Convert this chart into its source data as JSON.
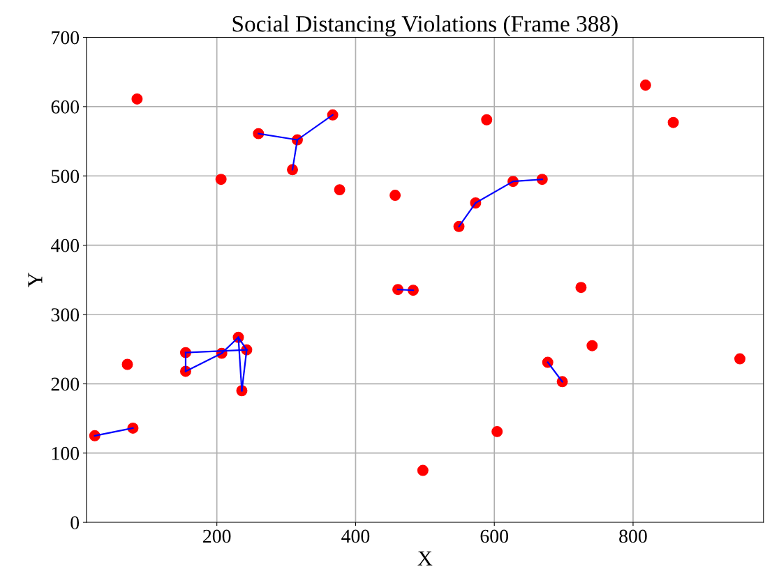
{
  "chart_data": {
    "type": "scatter",
    "title": "Social Distancing Violations (Frame 388)",
    "xlabel": "X",
    "ylabel": "Y",
    "xlim": [
      12,
      988
    ],
    "ylim": [
      0,
      700
    ],
    "xticks": [
      200,
      400,
      600,
      800
    ],
    "yticks": [
      0,
      100,
      200,
      300,
      400,
      500,
      600,
      700
    ],
    "grid": true,
    "series": [
      {
        "marker": "circle",
        "color": "#ff0000",
        "x": [
          24,
          79,
          71,
          85,
          155,
          155,
          207,
          231,
          243,
          236,
          206,
          260,
          316,
          309,
          367,
          377,
          457,
          461,
          483,
          497,
          549,
          573,
          589,
          604,
          627,
          669,
          677,
          698,
          725,
          741,
          818,
          858,
          954
        ],
        "values": [
          125,
          136,
          228,
          611,
          218,
          245,
          244,
          267,
          249,
          190,
          495,
          561,
          552,
          509,
          588,
          480,
          472,
          336,
          335,
          75,
          427,
          461,
          581,
          131,
          492,
          495,
          231,
          203,
          339,
          255,
          631,
          577,
          236
        ]
      },
      {
        "type": "line",
        "color": "#0000ff",
        "x": [
          24,
          79
        ],
        "values": [
          125,
          136
        ]
      },
      {
        "type": "line",
        "color": "#0000ff",
        "x": [
          155,
          155
        ],
        "values": [
          218,
          245
        ]
      },
      {
        "type": "line",
        "color": "#0000ff",
        "x": [
          155,
          207
        ],
        "values": [
          218,
          244
        ]
      },
      {
        "type": "line",
        "color": "#0000ff",
        "x": [
          155,
          243
        ],
        "values": [
          245,
          249
        ]
      },
      {
        "type": "line",
        "color": "#0000ff",
        "x": [
          207,
          231
        ],
        "values": [
          244,
          267
        ]
      },
      {
        "type": "line",
        "color": "#0000ff",
        "x": [
          231,
          236
        ],
        "values": [
          267,
          190
        ]
      },
      {
        "type": "line",
        "color": "#0000ff",
        "x": [
          231,
          243
        ],
        "values": [
          267,
          249
        ]
      },
      {
        "type": "line",
        "color": "#0000ff",
        "x": [
          236,
          243
        ],
        "values": [
          190,
          249
        ]
      },
      {
        "type": "line",
        "color": "#0000ff",
        "x": [
          260,
          316
        ],
        "values": [
          561,
          552
        ]
      },
      {
        "type": "line",
        "color": "#0000ff",
        "x": [
          316,
          309
        ],
        "values": [
          552,
          509
        ]
      },
      {
        "type": "line",
        "color": "#0000ff",
        "x": [
          316,
          367
        ],
        "values": [
          552,
          588
        ]
      },
      {
        "type": "line",
        "color": "#0000ff",
        "x": [
          461,
          483
        ],
        "values": [
          336,
          335
        ]
      },
      {
        "type": "line",
        "color": "#0000ff",
        "x": [
          549,
          573
        ],
        "values": [
          427,
          461
        ]
      },
      {
        "type": "line",
        "color": "#0000ff",
        "x": [
          573,
          627
        ],
        "values": [
          461,
          492
        ]
      },
      {
        "type": "line",
        "color": "#0000ff",
        "x": [
          627,
          669
        ],
        "values": [
          492,
          495
        ]
      },
      {
        "type": "line",
        "color": "#0000ff",
        "x": [
          677,
          698
        ],
        "values": [
          231,
          203
        ]
      }
    ]
  }
}
